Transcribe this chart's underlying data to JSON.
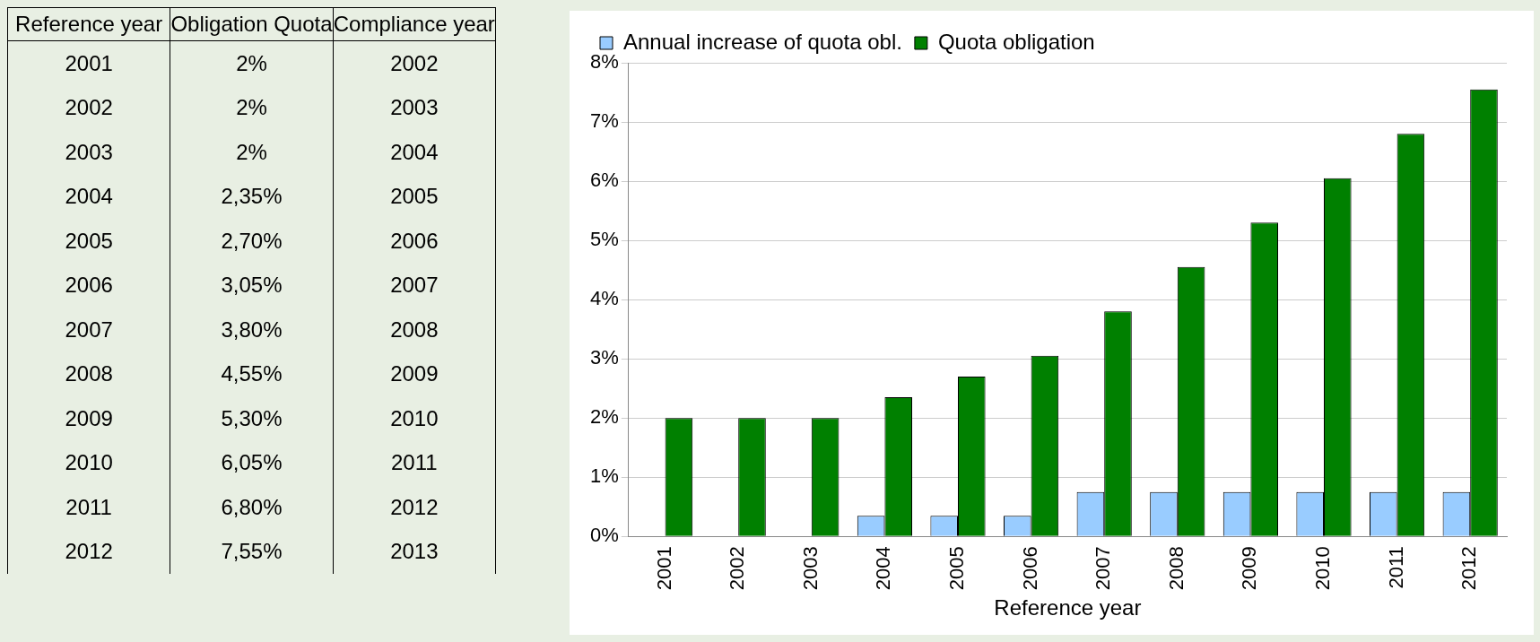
{
  "chart_data": {
    "type": "bar",
    "xlabel": "Reference year",
    "categories": [
      "2001",
      "2002",
      "2003",
      "2004",
      "2005",
      "2006",
      "2007",
      "2008",
      "2009",
      "2010",
      "2011",
      "2012"
    ],
    "series": [
      {
        "name": "Annual increase of quota obl.",
        "color": "#99ccff",
        "values": [
          0,
          0,
          0,
          0.35,
          0.35,
          0.35,
          0.75,
          0.75,
          0.75,
          0.75,
          0.75,
          0.75
        ]
      },
      {
        "name": "Quota obligation",
        "color": "#008000",
        "values": [
          2,
          2,
          2,
          2.35,
          2.7,
          3.05,
          3.8,
          4.55,
          5.3,
          6.05,
          6.8,
          7.55
        ]
      }
    ],
    "ylim": [
      0,
      8
    ],
    "yticks": [
      {
        "value": 0,
        "label": "0%"
      },
      {
        "value": 1,
        "label": "1%"
      },
      {
        "value": 2,
        "label": "2%"
      },
      {
        "value": 3,
        "label": "3%"
      },
      {
        "value": 4,
        "label": "4%"
      },
      {
        "value": 5,
        "label": "5%"
      },
      {
        "value": 6,
        "label": "6%"
      },
      {
        "value": 7,
        "label": "7%"
      },
      {
        "value": 8,
        "label": "8%"
      }
    ],
    "grid": "y",
    "legend": "top left",
    "annotations": [
      "Reference year",
      "Obligation Quota",
      "Compliance year",
      "2%",
      "2%",
      "2%",
      "2,35%",
      "2,70%",
      "3,05%",
      "3,80%",
      "4,55%",
      "5,30%",
      "6,05%",
      "6,80%",
      "7,55%",
      "2002",
      "2003",
      "2004",
      "2005",
      "2006",
      "2007",
      "2008",
      "2009",
      "2010",
      "2011",
      "2012",
      "2013"
    ]
  }
}
